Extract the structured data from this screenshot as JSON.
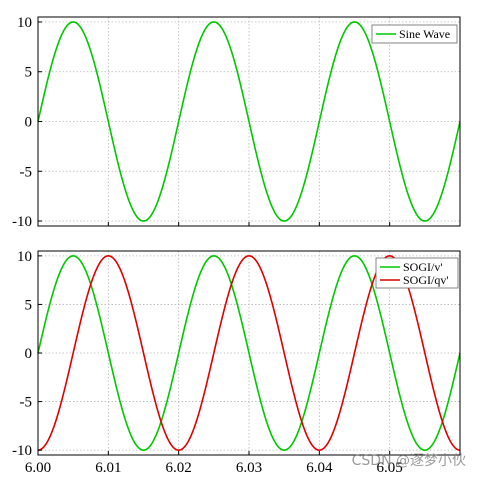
{
  "watermark": "CSDN @逐梦小伙",
  "colors": {
    "green": "#00c800",
    "red": "#e00000",
    "grid": "#b8b8b8",
    "axis": "#000000"
  },
  "chart_data": [
    {
      "type": "line",
      "title": "",
      "xlabel": "",
      "ylabel": "",
      "xlim": [
        6.0,
        6.06
      ],
      "ylim": [
        -10.5,
        10.5
      ],
      "yticks": [
        10,
        5,
        0,
        -5,
        -10
      ],
      "xticks": [
        6.0,
        6.01,
        6.02,
        6.03,
        6.04,
        6.05
      ],
      "xtick_labels": [],
      "grid": true,
      "legend": "top-right",
      "series": [
        {
          "name": "Sine Wave",
          "color": "#00c800",
          "function": "10*sin(2*pi*50*(x-6))"
        }
      ]
    },
    {
      "type": "line",
      "title": "",
      "xlabel": "",
      "ylabel": "",
      "xlim": [
        6.0,
        6.06
      ],
      "ylim": [
        -10.5,
        10.5
      ],
      "yticks": [
        10,
        5,
        0,
        -5,
        -10
      ],
      "xticks": [
        6.0,
        6.01,
        6.02,
        6.03,
        6.04,
        6.05
      ],
      "xtick_labels": [
        "6.00",
        "6.01",
        "6.02",
        "6.03",
        "6.04",
        "6.05"
      ],
      "grid": true,
      "legend": "top-right",
      "series": [
        {
          "name": "SOGI/v'",
          "color": "#00c800",
          "function": "10*sin(2*pi*50*(x-6))"
        },
        {
          "name": "SOGI/qv'",
          "color": "#e00000",
          "function": "-10*cos(2*pi*50*(x-6))"
        }
      ]
    }
  ]
}
